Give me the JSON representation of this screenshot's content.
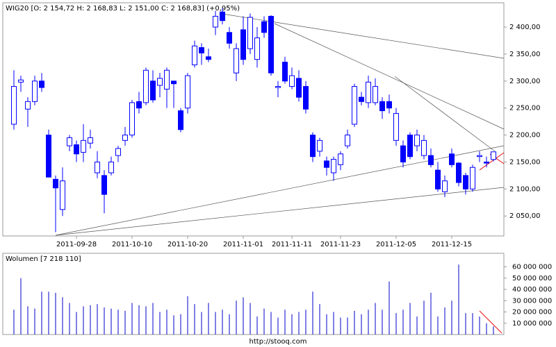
{
  "chart_data": [
    {
      "type": "candlestick",
      "title": "WIG20 [O: 2 154,72  H: 2 168,83  L: 2 151,00  C: 2 168,83]  (+0,95%)",
      "color": "#0000ff",
      "categories": [
        null,
        null,
        null,
        null,
        null,
        null,
        null,
        null,
        null,
        "2011-09-28",
        null,
        null,
        null,
        null,
        null,
        null,
        null,
        "2011-10-10",
        null,
        null,
        null,
        null,
        null,
        null,
        null,
        "2011-10-20",
        null,
        null,
        null,
        null,
        null,
        null,
        null,
        "2011-11-01",
        null,
        null,
        null,
        null,
        null,
        null,
        "2011-11-11",
        null,
        null,
        null,
        null,
        null,
        null,
        "2011-11-23",
        null,
        null,
        null,
        null,
        null,
        null,
        null,
        "2011-12-05",
        null,
        null,
        null,
        null,
        null,
        null,
        null,
        "2011-12-15",
        null,
        null,
        null,
        null,
        null,
        null
      ],
      "open": [
        2220,
        2298,
        2248,
        2262,
        2300,
        2200,
        2118,
        2062,
        2180,
        2182,
        2168,
        2185,
        2130,
        2125,
        2130,
        2162,
        2190,
        2200,
        2262,
        2260,
        2300,
        2292,
        2285,
        2300,
        2245,
        2250,
        2330,
        2362,
        2345,
        2400,
        2428,
        2390,
        2315,
        2395,
        2360,
        2340,
        2410,
        2420,
        2288,
        2335,
        2290,
        2305,
        2290,
        2200,
        2170,
        2152,
        2130,
        2145,
        2180,
        2220,
        2270,
        2260,
        2260,
        2262,
        2262,
        2190,
        2180,
        2200,
        2180,
        2162,
        2162,
        2135,
        2095,
        2165,
        2148,
        2125,
        2100,
        2160,
        2150,
        2154.72
      ],
      "high": [
        2320,
        2310,
        2270,
        2310,
        2315,
        2210,
        2125,
        2140,
        2200,
        2190,
        2220,
        2210,
        2170,
        2135,
        2160,
        2180,
        2215,
        2265,
        2280,
        2325,
        2320,
        2315,
        2325,
        2300,
        2250,
        2315,
        2375,
        2370,
        2360,
        2430,
        2435,
        2400,
        2370,
        2420,
        2425,
        2400,
        2420,
        2422,
        2300,
        2345,
        2325,
        2320,
        2300,
        2205,
        2195,
        2160,
        2160,
        2170,
        2210,
        2295,
        2280,
        2310,
        2305,
        2270,
        2275,
        2250,
        2190,
        2205,
        2210,
        2200,
        2175,
        2150,
        2125,
        2175,
        2150,
        2130,
        2145,
        2170,
        2160,
        2168.83
      ],
      "low": [
        2210,
        2280,
        2215,
        2255,
        2280,
        2122,
        2020,
        2050,
        2170,
        2150,
        2150,
        2175,
        2120,
        2055,
        2125,
        2150,
        2180,
        2195,
        2240,
        2255,
        2260,
        2270,
        2250,
        2250,
        2205,
        2240,
        2325,
        2330,
        2335,
        2385,
        2405,
        2360,
        2300,
        2330,
        2350,
        2325,
        2380,
        2310,
        2270,
        2295,
        2285,
        2262,
        2240,
        2150,
        2160,
        2125,
        2115,
        2135,
        2175,
        2215,
        2255,
        2250,
        2255,
        2230,
        2240,
        2180,
        2140,
        2155,
        2170,
        2155,
        2140,
        2095,
        2085,
        2140,
        2105,
        2090,
        2095,
        2150,
        2140,
        2151
      ],
      "close": [
        2290,
        2302,
        2262,
        2300,
        2288,
        2122,
        2102,
        2115,
        2195,
        2165,
        2190,
        2195,
        2150,
        2090,
        2150,
        2175,
        2200,
        2260,
        2250,
        2320,
        2265,
        2305,
        2320,
        2295,
        2210,
        2310,
        2365,
        2352,
        2340,
        2420,
        2412,
        2370,
        2360,
        2340,
        2418,
        2380,
        2390,
        2315,
        2290,
        2300,
        2310,
        2270,
        2248,
        2160,
        2190,
        2140,
        2155,
        2165,
        2200,
        2290,
        2262,
        2298,
        2290,
        2245,
        2250,
        2240,
        2150,
        2160,
        2200,
        2190,
        2145,
        2100,
        2115,
        2145,
        2112,
        2100,
        2140,
        2162,
        2148,
        2168.83
      ],
      "ylim": [
        2013,
        2445
      ],
      "yticks": [
        {
          "value": 2050,
          "label": "2 050,00"
        },
        {
          "value": 2100,
          "label": "2 100,00"
        },
        {
          "value": 2150,
          "label": "2 150,00"
        },
        {
          "value": 2200,
          "label": "2 200,00"
        },
        {
          "value": 2250,
          "label": "2 250,00"
        },
        {
          "value": 2300,
          "label": "2 300,00"
        },
        {
          "value": 2350,
          "label": "2 350,00"
        },
        {
          "value": 2400,
          "label": "2 400,00"
        }
      ]
    },
    {
      "type": "bar",
      "title": "Wolumen [7 218 110]",
      "color": "#0000cc",
      "values": [
        22000000,
        50000000,
        25000000,
        23000000,
        38000000,
        38000000,
        37000000,
        33000000,
        28000000,
        20000000,
        25000000,
        26000000,
        27000000,
        24000000,
        23000000,
        22000000,
        21000000,
        28000000,
        26000000,
        25000000,
        28000000,
        20000000,
        22000000,
        17000000,
        18000000,
        34000000,
        27000000,
        20000000,
        28000000,
        20000000,
        22000000,
        18000000,
        30000000,
        33000000,
        28000000,
        16000000,
        23000000,
        20000000,
        15000000,
        22000000,
        18000000,
        20000000,
        22000000,
        38000000,
        27000000,
        18000000,
        20000000,
        15000000,
        15000000,
        21000000,
        18000000,
        22000000,
        28000000,
        22000000,
        47000000,
        19000000,
        22000000,
        28000000,
        16000000,
        30000000,
        37000000,
        16000000,
        24000000,
        30000000,
        62000000,
        19000000,
        19000000,
        16000000,
        10000000,
        7218110
      ],
      "ylim": [
        0,
        72000000
      ],
      "yticks": [
        {
          "value": 10000000,
          "label": "10 000 000"
        },
        {
          "value": 20000000,
          "label": "20 000 000"
        },
        {
          "value": 30000000,
          "label": "30 000 000"
        },
        {
          "value": 40000000,
          "label": "40 000 000"
        },
        {
          "value": 50000000,
          "label": "50 000 000"
        },
        {
          "value": 60000000,
          "label": "60 000 000"
        }
      ]
    }
  ],
  "footer": "http://stooq.com"
}
